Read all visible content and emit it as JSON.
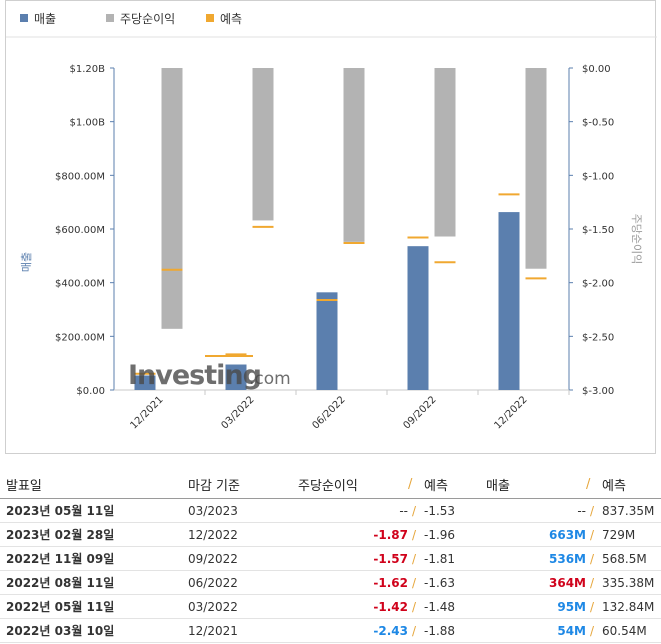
{
  "legend": [
    {
      "label": "매출",
      "color": "#5b7fae"
    },
    {
      "label": "주당순이익",
      "color": "#b3b3b3"
    },
    {
      "label": "예측",
      "color": "#f0a830"
    }
  ],
  "watermark": {
    "brand": "Investing",
    "suffix": ".com"
  },
  "chart_data": {
    "type": "bar",
    "categories": [
      "12/2021",
      "03/2022",
      "06/2022",
      "09/2022",
      "12/2022"
    ],
    "left_axis": {
      "label": "매출",
      "min": 0,
      "max": 1200000000,
      "ticks": [
        {
          "value": 0,
          "label": "$0.00"
        },
        {
          "value": 200000000,
          "label": "$200.00M"
        },
        {
          "value": 400000000,
          "label": "$400.00M"
        },
        {
          "value": 600000000,
          "label": "$600.00M"
        },
        {
          "value": 800000000,
          "label": "$800.00M"
        },
        {
          "value": 1000000000,
          "label": "$1.00B"
        },
        {
          "value": 1200000000,
          "label": "$1.20B"
        }
      ]
    },
    "right_axis": {
      "label": "주당순이익",
      "min": -3.0,
      "max": 0.0,
      "ticks": [
        {
          "value": 0.0,
          "label": "$0.00"
        },
        {
          "value": -0.5,
          "label": "$-0.50"
        },
        {
          "value": -1.0,
          "label": "$-1.00"
        },
        {
          "value": -1.5,
          "label": "$-1.50"
        },
        {
          "value": -2.0,
          "label": "$-2.00"
        },
        {
          "value": -2.5,
          "label": "$-2.50"
        },
        {
          "value": -3.0,
          "label": "$-3.00"
        }
      ]
    },
    "series": [
      {
        "name": "매출",
        "axis": "left",
        "values": [
          54000000,
          95000000,
          364000000,
          536000000,
          663000000
        ]
      },
      {
        "name": "매출 예측",
        "axis": "left",
        "values": [
          60540000,
          132840000,
          335380000,
          568500000,
          729000000
        ]
      },
      {
        "name": "주당순이익",
        "axis": "right",
        "values": [
          -2.43,
          -1.42,
          -1.62,
          -1.57,
          -1.87
        ]
      },
      {
        "name": "주당순이익 예측",
        "axis": "right",
        "values": [
          -1.88,
          -1.48,
          -1.63,
          -1.81,
          -1.96
        ]
      }
    ]
  },
  "table": {
    "headers": {
      "date": "발표일",
      "period": "마감 기준",
      "eps": "주당순이익",
      "eps_forecast": "예측",
      "revenue": "매출",
      "revenue_forecast": "예측"
    },
    "separator": "/",
    "rows": [
      {
        "date": "2023년 05월 11일",
        "period": "03/2023",
        "eps": "--",
        "eps_forecast": "-1.53",
        "revenue": "--",
        "revenue_forecast": "837.35M",
        "eps_style": "plain",
        "revenue_style": "plain"
      },
      {
        "date": "2023년 02월 28일",
        "period": "12/2022",
        "eps": "-1.87",
        "eps_forecast": "-1.96",
        "revenue": "663M",
        "revenue_forecast": "729M",
        "eps_style": "neg",
        "revenue_style": "pos"
      },
      {
        "date": "2022년 11월 09일",
        "period": "09/2022",
        "eps": "-1.57",
        "eps_forecast": "-1.81",
        "revenue": "536M",
        "revenue_forecast": "568.5M",
        "eps_style": "neg",
        "revenue_style": "pos"
      },
      {
        "date": "2022년 08월 11일",
        "period": "06/2022",
        "eps": "-1.62",
        "eps_forecast": "-1.63",
        "revenue": "364M",
        "revenue_forecast": "335.38M",
        "eps_style": "neg",
        "revenue_style": "neg"
      },
      {
        "date": "2022년 05월 11일",
        "period": "03/2022",
        "eps": "-1.42",
        "eps_forecast": "-1.48",
        "revenue": "95M",
        "revenue_forecast": "132.84M",
        "eps_style": "neg",
        "revenue_style": "pos"
      },
      {
        "date": "2022년 03월 10일",
        "period": "12/2021",
        "eps": "-2.43",
        "eps_forecast": "-1.88",
        "revenue": "54M",
        "revenue_forecast": "60.54M",
        "eps_style": "pos",
        "revenue_style": "pos"
      }
    ]
  }
}
